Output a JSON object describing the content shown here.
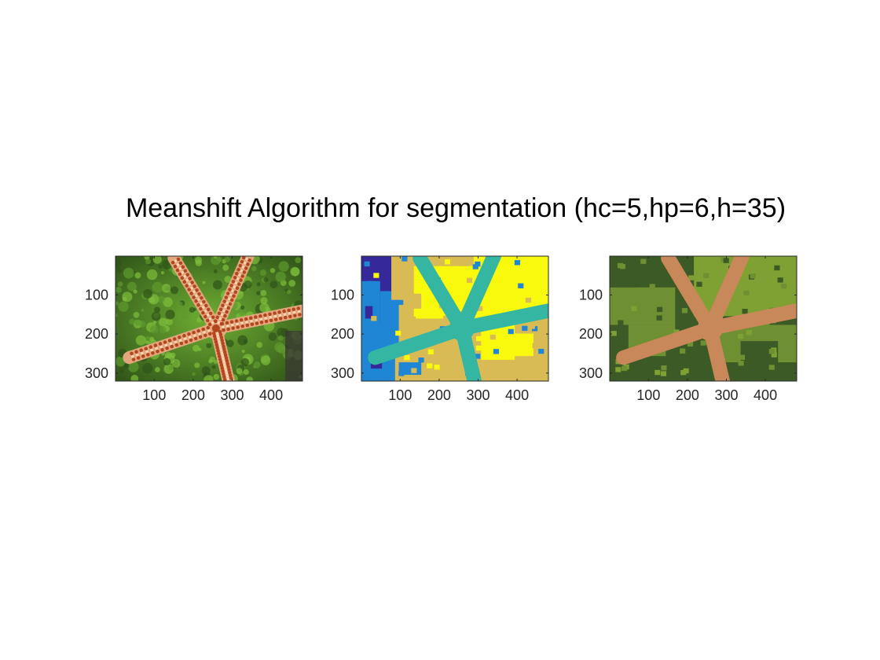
{
  "figure": {
    "title": "Meanshift Algorithm for segmentation (hc=5,hp=6,h=35)"
  },
  "chart_data": [
    {
      "type": "heatmap",
      "description_of_content": "original-image",
      "image_size": {
        "width": 480,
        "height": 320
      },
      "xlim": [
        0.5,
        480.5
      ],
      "ylim": [
        0.5,
        320.5
      ],
      "y_reversed": true,
      "xticks": [
        100,
        200,
        300,
        400
      ],
      "yticks": [
        100,
        200,
        300
      ],
      "xtick_labels": [
        "100",
        "200",
        "300",
        "400"
      ],
      "ytick_labels": [
        "100",
        "200",
        "300"
      ],
      "colors": {
        "background": "#5e9a2e",
        "background_dark": "#2f5418",
        "star": "#e3a77e",
        "star_spots": "#b3461f",
        "star_light": "#f5d5b3"
      }
    },
    {
      "type": "heatmap",
      "description_of_content": "segment-labels-colormap",
      "image_size": {
        "width": 480,
        "height": 320
      },
      "xlim": [
        0.5,
        480.5
      ],
      "ylim": [
        0.5,
        320.5
      ],
      "y_reversed": true,
      "xticks": [
        100,
        200,
        300,
        400
      ],
      "yticks": [
        100,
        200,
        300
      ],
      "xtick_labels": [
        "100",
        "200",
        "300",
        "400"
      ],
      "ytick_labels": [
        "100",
        "200",
        "300"
      ],
      "colors": {
        "region_1": "#35289b",
        "region_2": "#1e86d4",
        "region_3": "#35b6a3",
        "region_4": "#d8bb55",
        "region_5": "#f8f90c"
      }
    },
    {
      "type": "heatmap",
      "description_of_content": "segment-mean-colors",
      "image_size": {
        "width": 480,
        "height": 320
      },
      "xlim": [
        0.5,
        480.5
      ],
      "ylim": [
        0.5,
        320.5
      ],
      "y_reversed": true,
      "xticks": [
        100,
        200,
        300,
        400
      ],
      "yticks": [
        100,
        200,
        300
      ],
      "xtick_labels": [
        "100",
        "200",
        "300",
        "400"
      ],
      "ytick_labels": [
        "100",
        "200",
        "300"
      ],
      "colors": {
        "dark_green": "#3c5a25",
        "mid_green": "#6f8f33",
        "light_green": "#7fa033",
        "star": "#c9885a"
      }
    }
  ]
}
